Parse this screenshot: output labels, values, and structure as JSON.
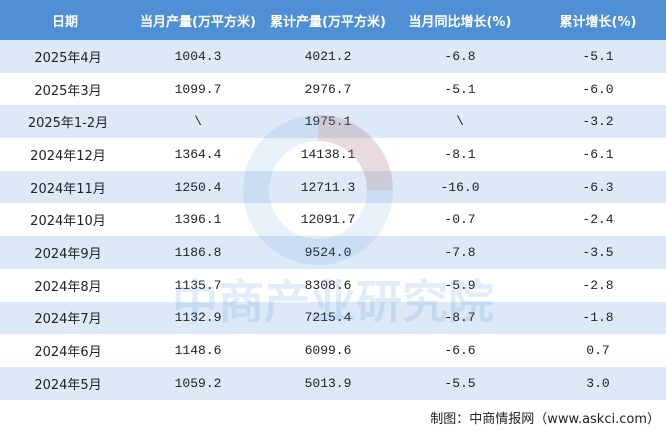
{
  "table": {
    "header": [
      "日期",
      "当月产量(万平方米)",
      "累计产量(万平方米)",
      "当月同比增长(%)",
      "累计增长(%)"
    ],
    "rows": [
      [
        "2025年4月",
        "1004.3",
        "4021.2",
        "-6.8",
        "-5.1"
      ],
      [
        "2025年3月",
        "1099.7",
        "2976.7",
        "-5.1",
        "-6.0"
      ],
      [
        "2025年1-2月",
        "\\",
        "1975.1",
        "\\",
        "-3.2"
      ],
      [
        "2024年12月",
        "1364.4",
        "14138.1",
        "-8.1",
        "-6.1"
      ],
      [
        "2024年11月",
        "1250.4",
        "12711.3",
        "-16.0",
        "-6.3"
      ],
      [
        "2024年10月",
        "1396.1",
        "12091.7",
        "-0.7",
        "-2.4"
      ],
      [
        "2024年9月",
        "1186.8",
        "9524.0",
        "-7.8",
        "-3.5"
      ],
      [
        "2024年8月",
        "1135.7",
        "8308.6",
        "-5.9",
        "-2.8"
      ],
      [
        "2024年7月",
        "1132.9",
        "7215.4",
        "-8.7",
        "-1.8"
      ],
      [
        "2024年6月",
        "1148.6",
        "6099.6",
        "-6.6",
        "0.7"
      ],
      [
        "2024年5月",
        "1059.2",
        "5013.9",
        "-5.5",
        "3.0"
      ]
    ]
  },
  "watermark": "中商产业研究院",
  "footer": "制图：中商情报网（www.askci.com）"
}
